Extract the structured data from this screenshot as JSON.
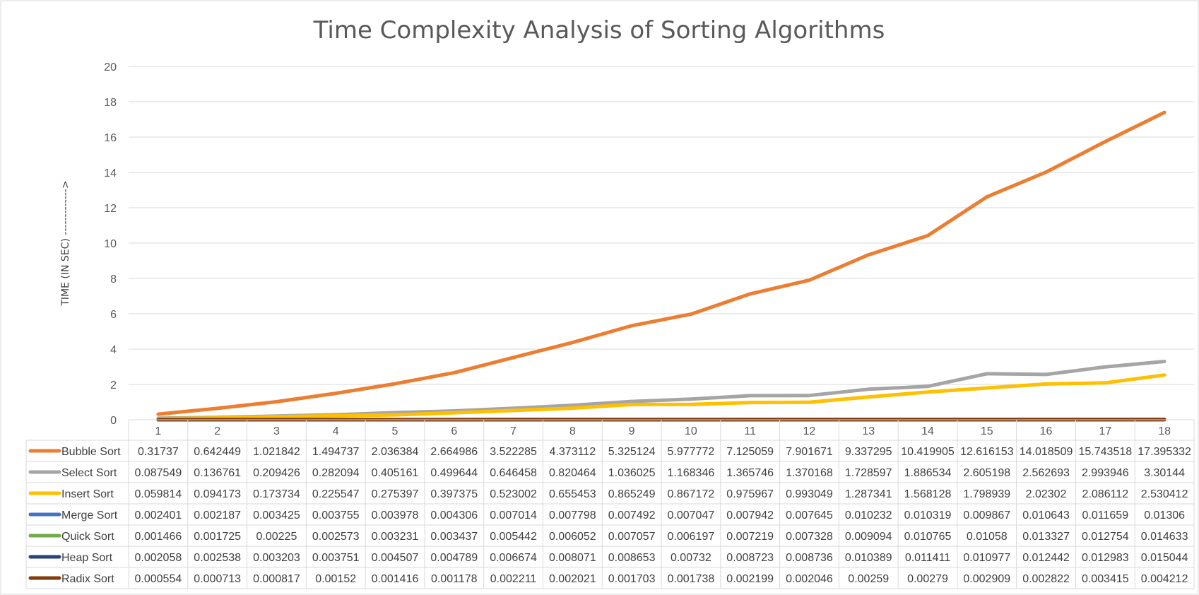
{
  "chart_data": {
    "type": "line",
    "title": "Time Complexity Analysis of Sorting Algorithms",
    "ylabel": "TIME (IN SEC) ------------->",
    "xlabel": "",
    "ylim": [
      0,
      20
    ],
    "yticks": [
      "0",
      "2",
      "4",
      "6",
      "8",
      "10",
      "12",
      "14",
      "16",
      "18",
      "20"
    ],
    "categories": [
      "1",
      "2",
      "3",
      "4",
      "5",
      "6",
      "7",
      "8",
      "9",
      "10",
      "11",
      "12",
      "13",
      "14",
      "15",
      "16",
      "17",
      "18"
    ],
    "grid": true,
    "legend_placement": "data-table",
    "series": [
      {
        "name": "Bubble Sort",
        "color": "#ED7D31",
        "values": [
          0.31737,
          0.642449,
          1.021842,
          1.494737,
          2.036384,
          2.664986,
          3.522285,
          4.373112,
          5.325124,
          5.977772,
          7.125059,
          7.901671,
          9.337295,
          10.419905,
          12.616153,
          14.018509,
          15.743518,
          17.395332
        ],
        "labels": [
          "0.31737",
          "0.642449",
          "1.021842",
          "1.494737",
          "2.036384",
          "2.664986",
          "3.522285",
          "4.373112",
          "5.325124",
          "5.977772",
          "7.125059",
          "7.901671",
          "9.337295",
          "10.419905",
          "12.616153",
          "14.018509",
          "15.743518",
          "17.395332"
        ]
      },
      {
        "name": "Select Sort",
        "color": "#A5A5A5",
        "values": [
          0.087549,
          0.136761,
          0.209426,
          0.282094,
          0.405161,
          0.499644,
          0.646458,
          0.820464,
          1.036025,
          1.168346,
          1.365746,
          1.370168,
          1.728597,
          1.886534,
          2.605198,
          2.562693,
          2.993946,
          3.30144
        ],
        "labels": [
          "0.087549",
          "0.136761",
          "0.209426",
          "0.282094",
          "0.405161",
          "0.499644",
          "0.646458",
          "0.820464",
          "1.036025",
          "1.168346",
          "1.365746",
          "1.370168",
          "1.728597",
          "1.886534",
          "2.605198",
          "2.562693",
          "2.993946",
          "3.30144"
        ]
      },
      {
        "name": "Insert  Sort",
        "color": "#FFC000",
        "values": [
          0.059814,
          0.094173,
          0.173734,
          0.225547,
          0.275397,
          0.397375,
          0.523002,
          0.655453,
          0.865249,
          0.867172,
          0.975967,
          0.993049,
          1.287341,
          1.568128,
          1.798939,
          2.02302,
          2.086112,
          2.530412
        ],
        "labels": [
          "0.059814",
          "0.094173",
          "0.173734",
          "0.225547",
          "0.275397",
          "0.397375",
          "0.523002",
          "0.655453",
          "0.865249",
          "0.867172",
          "0.975967",
          "0.993049",
          "1.287341",
          "1.568128",
          "1.798939",
          "2.02302",
          "2.086112",
          "2.530412"
        ]
      },
      {
        "name": "Merge Sort",
        "color": "#4472C4",
        "values": [
          0.002401,
          0.002187,
          0.003425,
          0.003755,
          0.003978,
          0.004306,
          0.007014,
          0.007798,
          0.007492,
          0.007047,
          0.007942,
          0.007645,
          0.010232,
          0.010319,
          0.009867,
          0.010643,
          0.011659,
          0.01306
        ],
        "labels": [
          "0.002401",
          "0.002187",
          "0.003425",
          "0.003755",
          "0.003978",
          "0.004306",
          "0.007014",
          "0.007798",
          "0.007492",
          "0.007047",
          "0.007942",
          "0.007645",
          "0.010232",
          "0.010319",
          "0.009867",
          "0.010643",
          "0.011659",
          "0.01306"
        ]
      },
      {
        "name": "Quick  Sort",
        "color": "#70AD47",
        "values": [
          0.001466,
          0.001725,
          0.00225,
          0.002573,
          0.003231,
          0.003437,
          0.005442,
          0.006052,
          0.007057,
          0.006197,
          0.007219,
          0.007328,
          0.009094,
          0.010765,
          0.01058,
          0.013327,
          0.012754,
          0.014633
        ],
        "labels": [
          "0.001466",
          "0.001725",
          "0.00225",
          "0.002573",
          "0.003231",
          "0.003437",
          "0.005442",
          "0.006052",
          "0.007057",
          "0.006197",
          "0.007219",
          "0.007328",
          "0.009094",
          "0.010765",
          "0.01058",
          "0.013327",
          "0.012754",
          "0.014633"
        ]
      },
      {
        "name": "Heap  Sort",
        "color": "#264478",
        "values": [
          0.002058,
          0.002538,
          0.003203,
          0.003751,
          0.004507,
          0.004789,
          0.006674,
          0.008071,
          0.008653,
          0.00732,
          0.008723,
          0.008736,
          0.010389,
          0.011411,
          0.010977,
          0.012442,
          0.012983,
          0.015044
        ],
        "labels": [
          "0.002058",
          "0.002538",
          "0.003203",
          "0.003751",
          "0.004507",
          "0.004789",
          "0.006674",
          "0.008071",
          "0.008653",
          "0.00732",
          "0.008723",
          "0.008736",
          "0.010389",
          "0.011411",
          "0.010977",
          "0.012442",
          "0.012983",
          "0.015044"
        ]
      },
      {
        "name": "Radix Sort",
        "color": "#843C0C",
        "values": [
          0.000554,
          0.000713,
          0.000817,
          0.00152,
          0.001416,
          0.001178,
          0.002211,
          0.002021,
          0.001703,
          0.001738,
          0.002199,
          0.002046,
          0.00259,
          0.00279,
          0.002909,
          0.002822,
          0.003415,
          0.004212
        ],
        "labels": [
          "0.000554",
          "0.000713",
          "0.000817",
          "0.00152",
          "0.001416",
          "0.001178",
          "0.002211",
          "0.002021",
          "0.001703",
          "0.001738",
          "0.002199",
          "0.002046",
          "0.00259",
          "0.00279",
          "0.002909",
          "0.002822",
          "0.003415",
          "0.004212"
        ]
      }
    ]
  }
}
